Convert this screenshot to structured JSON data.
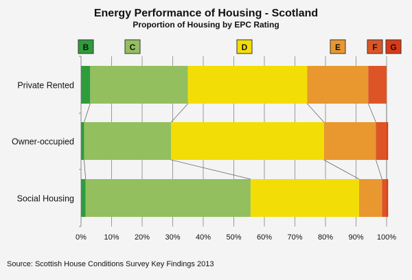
{
  "chart_data": {
    "type": "bar",
    "orientation": "horizontal",
    "stacked": true,
    "title": "Energy Performance of Housing - Scotland",
    "subtitle": "Proportion of Housing by EPC Rating",
    "source": "Source: Scottish House Conditions Survey Key Findings 2013",
    "categories": [
      "Private Rented",
      "Owner-occupied",
      "Social Housing"
    ],
    "series": [
      {
        "name": "B",
        "color": "#2e9c3c",
        "values": [
          3,
          1,
          1.5
        ]
      },
      {
        "name": "C",
        "color": "#93bf5f",
        "values": [
          32,
          28.5,
          54
        ]
      },
      {
        "name": "D",
        "color": "#f2de06",
        "values": [
          39,
          50,
          35.5
        ]
      },
      {
        "name": "E",
        "color": "#e8982f",
        "values": [
          20,
          17,
          7.5
        ]
      },
      {
        "name": "F",
        "color": "#dd5526",
        "values": [
          6,
          3.5,
          1.5
        ]
      },
      {
        "name": "G",
        "color": "#d93a16",
        "values": [
          0,
          0.5,
          0.5
        ]
      }
    ],
    "xlim": [
      0,
      100
    ],
    "xticks": [
      "0%",
      "10%",
      "20%",
      "30%",
      "40%",
      "50%",
      "60%",
      "70%",
      "80%",
      "90%",
      "100%"
    ],
    "grid": true,
    "legend": "top"
  }
}
